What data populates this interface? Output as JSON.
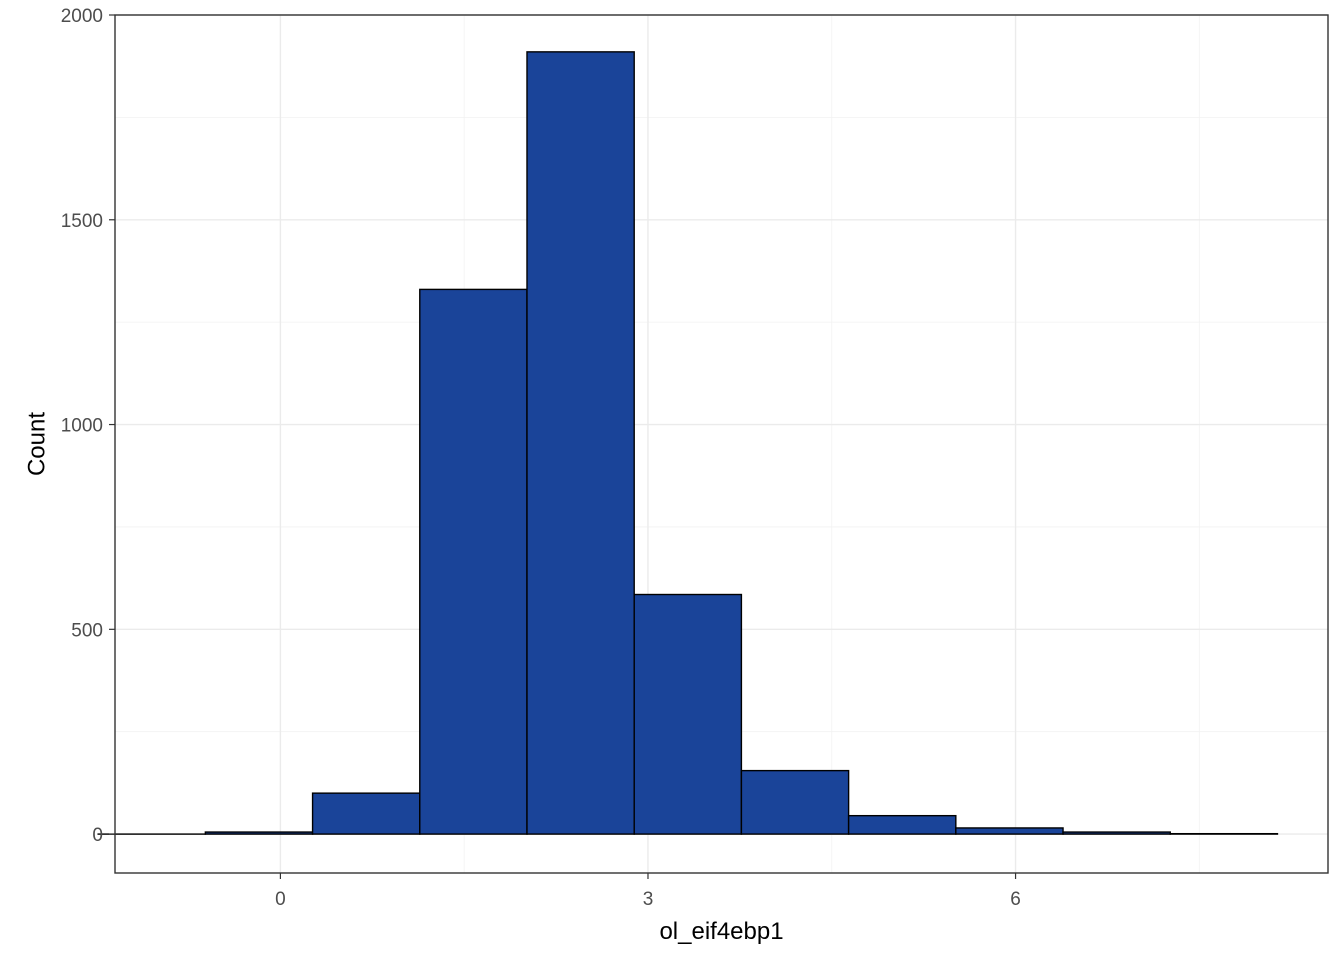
{
  "chart_data": {
    "type": "bar",
    "subtype": "histogram",
    "title": "",
    "xlabel": "ol_eif4ebp1",
    "ylabel": "Count",
    "bin_width": 0.875,
    "bin_centers": [
      -1.05,
      -0.175,
      0.7,
      1.575,
      2.45,
      3.325,
      4.2,
      5.075,
      5.95,
      6.825,
      7.7
    ],
    "values": [
      0,
      5,
      100,
      1330,
      1910,
      585,
      155,
      45,
      15,
      5,
      1
    ],
    "xlim": [
      -1.35,
      8.55
    ],
    "ylim": [
      -95,
      2000
    ],
    "x_ticks": [
      0,
      3,
      6
    ],
    "x_tick_labels": [
      "0",
      "3",
      "6"
    ],
    "y_ticks": [
      0,
      500,
      1000,
      1500,
      2000
    ],
    "y_tick_labels": [
      "0",
      "500",
      "1000",
      "1500",
      "2000"
    ],
    "grid": true,
    "legend": "none",
    "colors": {
      "bar_fill": "#1a4499",
      "bar_outline": "#000000",
      "grid": "#ebebeb",
      "panel_border": "#333333",
      "tick_text": "#4d4d4d"
    }
  }
}
